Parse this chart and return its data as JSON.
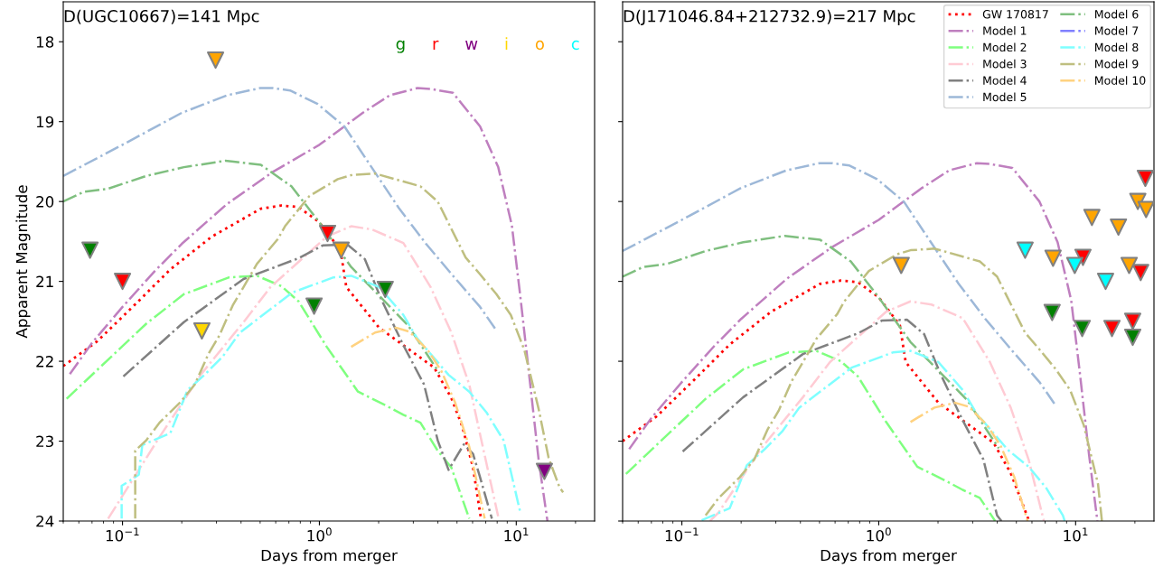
{
  "chart_data": [
    {
      "type": "line",
      "title": "D(UGC10667)=141 Mpc",
      "xlabel": "Days from merger",
      "ylabel": "Apparent Magnitude",
      "log": "x",
      "xlim": [
        0.05,
        25
      ],
      "ylim": [
        24,
        17.5
      ],
      "xticks": [
        {
          "value": 0.1,
          "label": "10$^{−1}$"
        },
        {
          "value": 1,
          "label": "10$^{0}$"
        },
        {
          "value": 10,
          "label": "10$^{1}$"
        }
      ],
      "yticks": [
        18,
        19,
        20,
        21,
        22,
        23,
        24
      ],
      "grid": false,
      "legend": "top right",
      "series": [
        {
          "color": "#ff0000",
          "line_style": "dotted",
          "x": [
            0.05,
            0.0744,
            0.118,
            0.175,
            0.284,
            0.504,
            0.642,
            0.784,
            1,
            1.28,
            1.37,
            2.01,
            2.67,
            3.83,
            4.68,
            5.31,
            6.03,
            6.62
          ],
          "values": [
            22.06,
            21.75,
            21.27,
            20.85,
            20.44,
            20.09,
            20.05,
            20.07,
            20.26,
            20.61,
            21.07,
            21.58,
            21.8,
            22.08,
            22.46,
            22.81,
            23.33,
            23.97
          ]
        },
        {
          "color": "#bf7fbf",
          "line_style": "dashdot",
          "x": [
            0.054,
            0.07,
            0.1,
            0.146,
            0.2,
            0.34,
            0.58,
            1,
            1.66,
            2.28,
            3.15,
            3.66,
            4.77,
            6.55,
            8.1,
            9.5,
            10.5,
            11.7,
            13,
            14.4
          ],
          "values": [
            22.16,
            21.77,
            21.32,
            20.87,
            20.53,
            20.03,
            19.63,
            19.29,
            18.89,
            18.67,
            18.58,
            18.59,
            18.64,
            19.06,
            19.57,
            20.3,
            21.2,
            22.23,
            23.24,
            24.0
          ]
        },
        {
          "color": "#7fff7f",
          "line_style": "dashdot",
          "x": [
            0.052,
            0.132,
            0.205,
            0.348,
            0.482,
            0.642,
            0.784,
            1.09,
            1.57,
            2.16,
            2.67,
            3.26,
            3.99,
            4.68,
            5.77
          ],
          "values": [
            22.47,
            21.53,
            21.16,
            20.95,
            20.93,
            21.06,
            21.25,
            21.82,
            22.38,
            22.55,
            22.67,
            22.77,
            23.12,
            23.33,
            23.97
          ]
        },
        {
          "color": "#ffcbd4",
          "line_style": "dashdot",
          "x": [
            0.0845,
            0.154,
            0.253,
            0.412,
            0.565,
            1.09,
            1.45,
            1.85,
            2.67,
            3.67,
            4.68,
            5.77,
            6.76,
            8.09
          ],
          "values": [
            23.97,
            22.95,
            22.15,
            21.51,
            21.07,
            20.44,
            20.31,
            20.35,
            20.52,
            21.07,
            21.64,
            22.29,
            23.07,
            23.94
          ]
        },
        {
          "color": "#808080",
          "line_style": "dashdot",
          "x": [
            0.101,
            0.205,
            0.412,
            0.784,
            1.04,
            1.39,
            1.7,
            2.05,
            2.67,
            3.4,
            3.99,
            4.53,
            5.42,
            6.03,
            6.49,
            7.52
          ],
          "values": [
            22.19,
            21.51,
            20.97,
            20.71,
            20.55,
            20.54,
            20.72,
            21.21,
            21.8,
            22.29,
            22.99,
            23.36,
            23.04,
            23.16,
            23.42,
            23.97
          ]
        },
        {
          "color": "#9db8d8",
          "line_style": "dashdot",
          "x": [
            0.05,
            0.1,
            0.2,
            0.34,
            0.5,
            0.58,
            0.71,
            0.98,
            1.34,
            1.84,
            2.53,
            3.48,
            4.77,
            6.55,
            7.8
          ],
          "values": [
            19.68,
            19.29,
            18.89,
            18.67,
            18.58,
            18.58,
            18.61,
            18.78,
            19.06,
            19.57,
            20.08,
            20.53,
            20.93,
            21.32,
            21.59
          ]
        },
        {
          "color": "#7fbf7f",
          "line_style": "dashdot",
          "x": [
            0.05,
            0.0635,
            0.0845,
            0.132,
            0.205,
            0.333,
            0.504,
            0.721,
            1,
            1.45,
            2.07,
            2.82,
            4.07
          ],
          "values": [
            20.0,
            19.88,
            19.84,
            19.68,
            19.57,
            19.49,
            19.54,
            19.81,
            20.26,
            20.82,
            21.21,
            21.55,
            22.15
          ]
        },
        {
          "color": "#7fffff",
          "line_style": "dashdot",
          "x": [
            0.099,
            0.099,
            0.121,
            0.126,
            0.175,
            0.214,
            0.261,
            0.323,
            0.395,
            0.728,
            1.18,
            1.45,
            2.01,
            2.67,
            3.13,
            4.53,
            5.77,
            7.06,
            8.62,
            10.5
          ],
          "values": [
            23.97,
            23.56,
            23.42,
            23.05,
            22.9,
            22.36,
            22.17,
            21.94,
            21.64,
            21.14,
            20.95,
            20.93,
            21.07,
            21.42,
            21.71,
            22.17,
            22.38,
            22.64,
            22.99,
            23.9
          ]
        },
        {
          "color": "#bfbf80",
          "line_style": "dashdot",
          "x": [
            0.116,
            0.116,
            0.132,
            0.154,
            0.197,
            0.233,
            0.273,
            0.31,
            0.363,
            0.412,
            0.482,
            0.615,
            0.669,
            0.891,
            1.24,
            1.45,
            1.92,
            3.26,
            3.99,
            5.53,
            6.49,
            7.93,
            9.38,
            11.0,
            13.0,
            14.6,
            16.6,
            17.3
          ],
          "values": [
            23.97,
            23.12,
            22.99,
            22.77,
            22.51,
            22.29,
            21.91,
            21.68,
            21.3,
            21.07,
            20.78,
            20.47,
            20.31,
            19.93,
            19.72,
            19.67,
            19.65,
            19.81,
            20.0,
            20.7,
            20.9,
            21.16,
            21.42,
            21.86,
            22.6,
            23.21,
            23.58,
            23.64
          ]
        },
        {
          "color": "#ffd280",
          "line_style": "dashdot",
          "x": [
            1.45,
            1.92,
            2.45,
            2.87,
            3.55,
            4.16,
            4.88,
            5.77,
            6.91
          ],
          "values": [
            21.82,
            21.64,
            21.58,
            21.63,
            21.86,
            22.12,
            22.51,
            23.07,
            23.97
          ]
        },
        {
          "type": "scatter",
          "name": "g",
          "color": "#008000",
          "marker": "triangle",
          "x": [
            0.0684,
            0.94,
            2.16
          ],
          "values": [
            20.61,
            21.31,
            21.1
          ]
        },
        {
          "type": "scatter",
          "name": "r",
          "color": "#ff0000",
          "marker": "triangle",
          "x": [
            0.1,
            1.1
          ],
          "values": [
            21.0,
            20.4
          ]
        },
        {
          "type": "scatter",
          "name": "w",
          "color": "#800080",
          "marker": "triangle",
          "x": [
            13.9
          ],
          "values": [
            23.38
          ]
        },
        {
          "type": "scatter",
          "name": "i",
          "color": "#ffd700",
          "marker": "triangle",
          "x": [
            0.253
          ],
          "values": [
            21.62
          ]
        },
        {
          "type": "scatter",
          "name": "o",
          "color": "#ffa500",
          "marker": "triangle",
          "x": [
            0.297,
            1.29
          ],
          "values": [
            18.23,
            20.61
          ]
        },
        {
          "type": "scatter",
          "name": "c",
          "color": "#00ffff",
          "marker": "triangle"
        }
      ]
    },
    {
      "type": "line",
      "title": "D(J171046.84+212732.9)=217 Mpc",
      "xlabel": "Days from merger",
      "log": "x",
      "xlim": [
        0.05,
        25
      ],
      "ylim": [
        24,
        17.5
      ],
      "xticks": [
        {
          "value": 0.1,
          "label": "10$^{−1}$"
        },
        {
          "value": 1,
          "label": "10$^{0}$"
        },
        {
          "value": 10,
          "label": "10$^{1}$"
        }
      ],
      "yticks": [
        18,
        19,
        20,
        21,
        22,
        23,
        24
      ],
      "tick_labels": "x",
      "grid": false,
      "legend": "top right",
      "series": [
        {
          "name": "GW 170817",
          "color": "#ff0000",
          "line_style": "dotted",
          "x": [
            0.05,
            0.0744,
            0.118,
            0.175,
            0.284,
            0.504,
            0.642,
            0.784,
            1,
            1.28,
            1.37,
            2.01,
            2.67,
            3.83,
            4.68,
            5.31,
            5.8
          ],
          "values": [
            23.0,
            22.69,
            22.21,
            21.79,
            21.38,
            21.03,
            20.99,
            21.01,
            21.2,
            21.55,
            22.01,
            22.52,
            22.74,
            23.02,
            23.4,
            23.75,
            24.0
          ]
        },
        {
          "name": "Model 1",
          "color": "#bf7fbf",
          "line_style": "dashdot",
          "x": [
            0.054,
            0.07,
            0.1,
            0.146,
            0.2,
            0.34,
            0.58,
            1,
            1.66,
            2.28,
            3.15,
            3.66,
            4.77,
            6.55,
            8.1,
            9.5,
            10.5,
            11.7,
            12.9
          ],
          "values": [
            23.1,
            22.71,
            22.26,
            21.81,
            21.47,
            20.97,
            20.57,
            20.23,
            19.83,
            19.61,
            19.52,
            19.53,
            19.58,
            20.0,
            20.51,
            21.24,
            22.14,
            23.17,
            24.0
          ]
        },
        {
          "name": "Model 2",
          "color": "#7fff7f",
          "line_style": "dashdot",
          "x": [
            0.052,
            0.132,
            0.205,
            0.348,
            0.482,
            0.642,
            0.784,
            1.09,
            1.57,
            2.16,
            2.67,
            3.26,
            3.9
          ],
          "values": [
            23.41,
            22.47,
            22.1,
            21.89,
            21.87,
            22.0,
            22.19,
            22.76,
            23.32,
            23.49,
            23.61,
            23.71,
            24.0
          ]
        },
        {
          "name": "Model 3",
          "color": "#ffcbd4",
          "line_style": "dashdot",
          "x": [
            0.139,
            0.154,
            0.253,
            0.412,
            0.565,
            1.09,
            1.45,
            1.85,
            2.67,
            3.67,
            4.68,
            5.77,
            6.9
          ],
          "values": [
            24.0,
            23.89,
            23.09,
            22.45,
            22.01,
            21.38,
            21.25,
            21.29,
            21.46,
            22.01,
            22.58,
            23.23,
            24.0
          ]
        },
        {
          "name": "Model 4",
          "color": "#808080",
          "line_style": "dashdot",
          "x": [
            0.101,
            0.205,
            0.412,
            0.784,
            1.04,
            1.39,
            1.7,
            2.05,
            2.67,
            3.4,
            3.99,
            4.2
          ],
          "values": [
            23.13,
            22.45,
            21.91,
            21.65,
            21.49,
            21.48,
            21.66,
            22.15,
            22.74,
            23.23,
            23.93,
            24.0
          ]
        },
        {
          "name": "Model 5",
          "color": "#9db8d8",
          "line_style": "dashdot",
          "x": [
            0.05,
            0.1,
            0.2,
            0.34,
            0.5,
            0.58,
            0.71,
            0.98,
            1.34,
            1.84,
            2.53,
            3.48,
            4.77,
            6.55,
            7.8
          ],
          "values": [
            20.62,
            20.23,
            19.83,
            19.61,
            19.52,
            19.52,
            19.55,
            19.72,
            20.0,
            20.51,
            21.02,
            21.47,
            21.87,
            22.26,
            22.53
          ]
        },
        {
          "name": "Model 6",
          "color": "#7fbf7f",
          "line_style": "dashdot",
          "x": [
            0.05,
            0.0635,
            0.0845,
            0.132,
            0.205,
            0.333,
            0.504,
            0.721,
            1,
            1.45,
            2.07,
            2.82,
            4.07
          ],
          "values": [
            20.94,
            20.82,
            20.78,
            20.62,
            20.51,
            20.43,
            20.48,
            20.75,
            21.2,
            21.76,
            22.15,
            22.49,
            23.09
          ]
        },
        {
          "name": "Model 7",
          "color": "#8080ff",
          "line_style": "dashdot"
        },
        {
          "name": "Model 8",
          "color": "#7fffff",
          "line_style": "dashdot",
          "x": [
            0.126,
            0.175,
            0.214,
            0.261,
            0.323,
            0.395,
            0.728,
            1.18,
            1.45,
            2.01,
            2.67,
            3.13,
            4.53,
            5.77,
            7.06,
            8.62,
            8.8
          ],
          "values": [
            23.99,
            23.84,
            23.3,
            23.11,
            22.88,
            22.58,
            22.08,
            21.89,
            21.87,
            22.01,
            22.36,
            22.65,
            23.11,
            23.32,
            23.58,
            23.93,
            24.0
          ]
        },
        {
          "name": "Model 9",
          "color": "#bfbf80",
          "line_style": "dashdot",
          "x": [
            0.132,
            0.154,
            0.197,
            0.233,
            0.273,
            0.31,
            0.363,
            0.412,
            0.482,
            0.615,
            0.669,
            0.891,
            1.24,
            1.45,
            1.92,
            3.26,
            3.99,
            5.53,
            6.49,
            7.93,
            9.38,
            11.0,
            13.0,
            13.6
          ],
          "values": [
            23.93,
            23.71,
            23.45,
            23.23,
            22.85,
            22.62,
            22.24,
            22.01,
            21.72,
            21.41,
            21.25,
            20.87,
            20.66,
            20.61,
            20.59,
            20.75,
            20.94,
            21.64,
            21.84,
            22.1,
            22.36,
            22.8,
            23.54,
            24.0
          ]
        },
        {
          "name": "Model 10",
          "color": "#ffd280",
          "line_style": "dashdot",
          "x": [
            1.45,
            1.92,
            2.45,
            2.87,
            3.55,
            4.16,
            4.88,
            5.7
          ],
          "values": [
            22.76,
            22.58,
            22.52,
            22.57,
            22.8,
            23.06,
            23.45,
            24.0
          ]
        },
        {
          "type": "scatter",
          "color": "#008000",
          "marker": "triangle",
          "x": [
            7.6,
            10.8,
            19.5
          ],
          "values": [
            21.39,
            21.59,
            21.7
          ]
        },
        {
          "type": "scatter",
          "color": "#ff0000",
          "marker": "triangle",
          "x": [
            10.9,
            22.6,
            21.4,
            15.3,
            19.5
          ],
          "values": [
            20.7,
            19.71,
            20.89,
            21.59,
            21.5
          ]
        },
        {
          "type": "scatter",
          "color": "#ffa500",
          "marker": "triangle",
          "x": [
            1.3,
            7.68,
            12.1,
            16.5,
            20.7,
            22.8,
            18.7
          ],
          "values": [
            20.8,
            20.71,
            20.2,
            20.32,
            20.0,
            20.1,
            20.8
          ]
        },
        {
          "type": "scatter",
          "color": "#00ffff",
          "marker": "triangle",
          "x": [
            5.54,
            9.9,
            14.2
          ],
          "values": [
            20.61,
            20.8,
            21.0
          ]
        }
      ]
    }
  ]
}
